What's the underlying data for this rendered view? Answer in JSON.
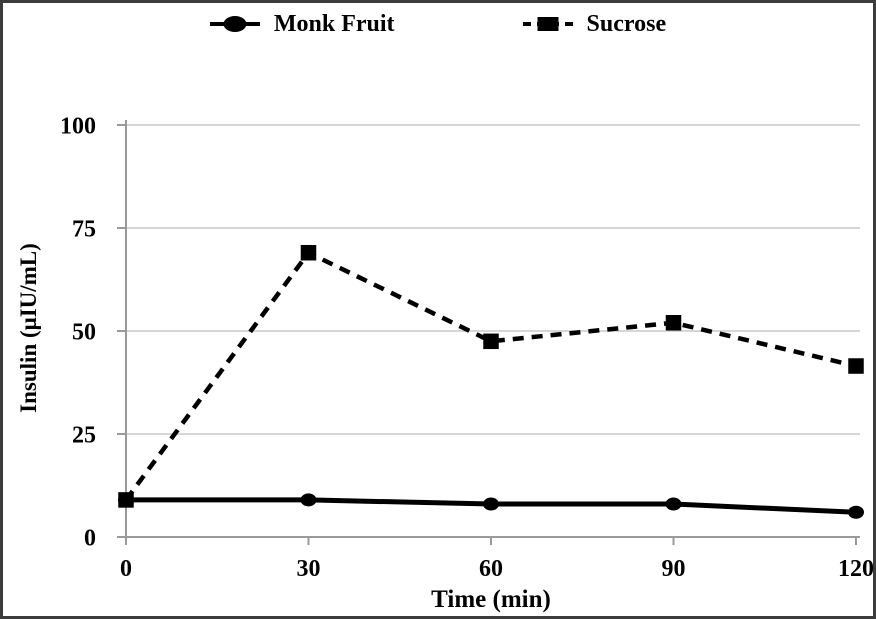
{
  "frame": {
    "background": "#ffffff",
    "border_color": "#3c3c3c"
  },
  "chart_data": {
    "type": "line",
    "title": "",
    "xlabel": "Time (min)",
    "ylabel": "Insulin (μIU/mL)",
    "x": [
      0,
      30,
      60,
      90,
      120
    ],
    "xlim": [
      0,
      120
    ],
    "ylim": [
      0,
      100
    ],
    "xticks": [
      "0",
      "30",
      "60",
      "90",
      "120"
    ],
    "ytick_values": [
      0,
      25,
      50,
      75,
      100
    ],
    "yticks": [
      "0",
      "25",
      "50",
      "75",
      "100"
    ],
    "grid": "horizontal-only",
    "gridline_color": "#c8c8c8",
    "axis_color": "#9a9a9a",
    "legend_position": "top-center",
    "series": [
      {
        "name": "Monk Fruit",
        "values": [
          9,
          9,
          8,
          8,
          6
        ],
        "color": "#000000",
        "line_style": "solid",
        "marker": "circle"
      },
      {
        "name": "Sucrose",
        "values": [
          9,
          69,
          47.5,
          52,
          41.5
        ],
        "color": "#000000",
        "line_style": "dashed",
        "marker": "square"
      }
    ]
  }
}
